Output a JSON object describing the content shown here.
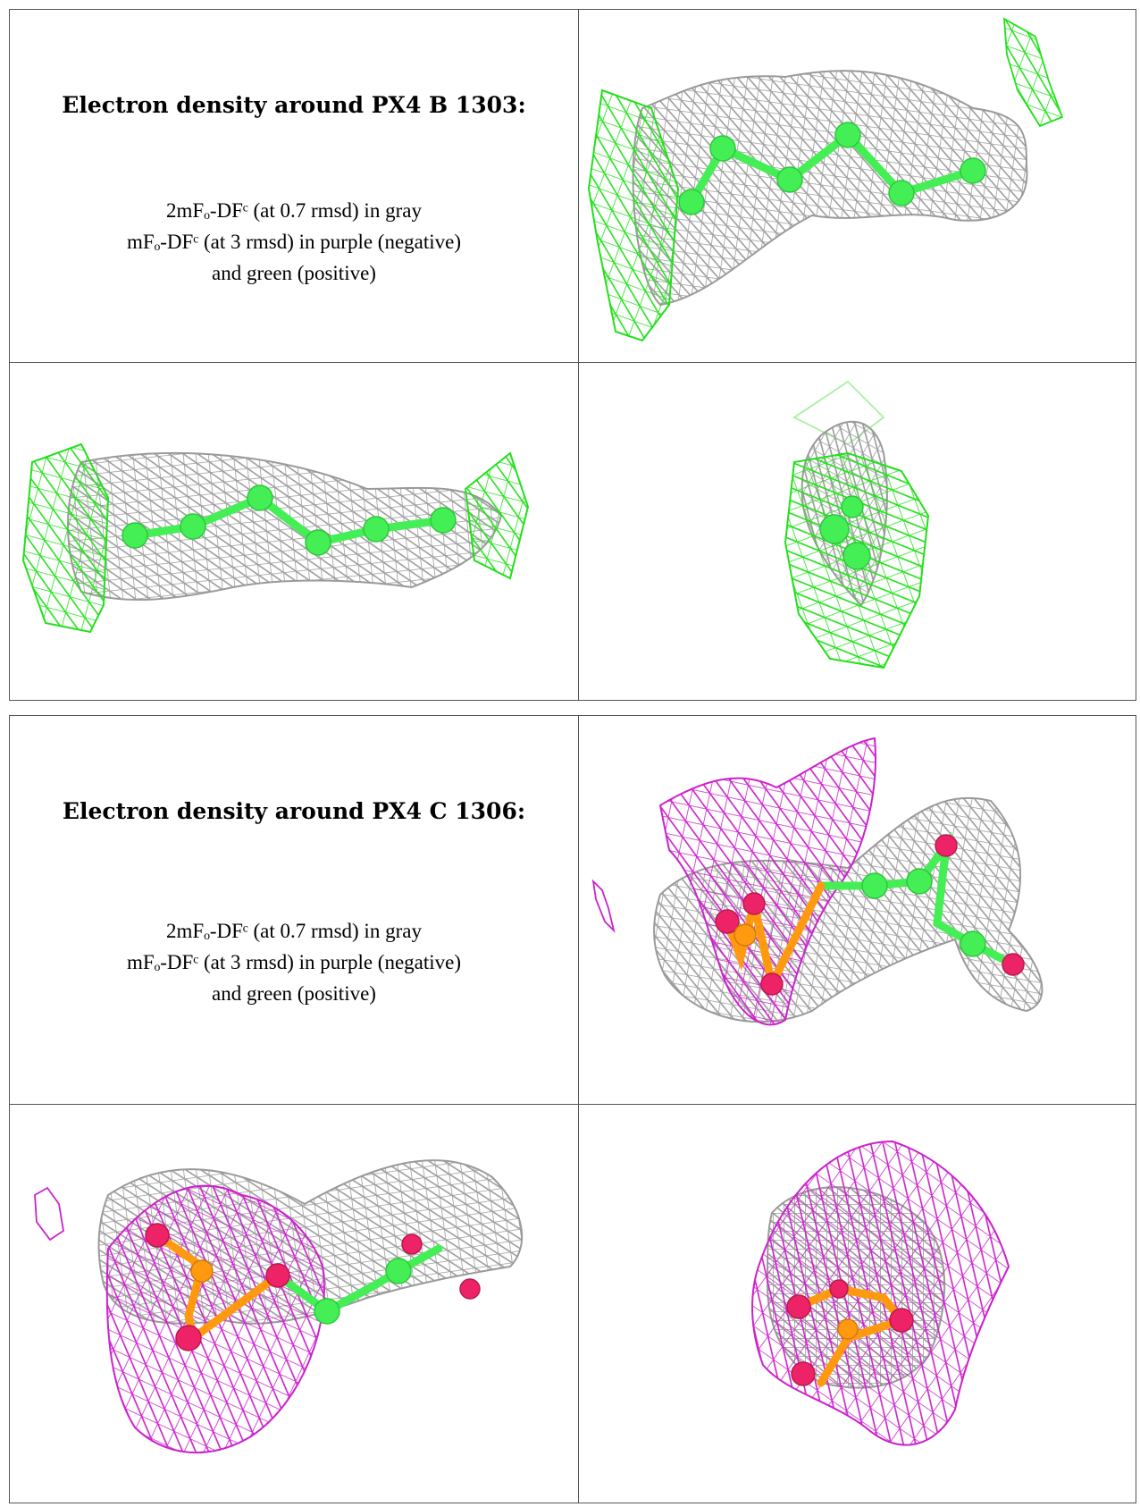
{
  "panels": [
    {
      "title": "Electron density around PX4 B 1303:",
      "legend": {
        "line1": "2mFₒ-DFᶜ (at 0.7 rmsd) in gray",
        "line2": "mFₒ-DFᶜ (at 3 rmsd) in purple (negative)",
        "line3": "and green (positive)"
      },
      "views": [
        "density-view-1",
        "density-view-2",
        "density-view-3"
      ]
    },
    {
      "title": "Electron density around PX4 C 1306:",
      "legend": {
        "line1": "2mFₒ-DFᶜ (at 0.7 rmsd) in gray",
        "line2": "mFₒ-DFᶜ (at 3 rmsd) in purple (negative)",
        "line3": "and green (positive)"
      },
      "views": [
        "density-view-1",
        "density-view-2",
        "density-view-3"
      ]
    }
  ],
  "colors": {
    "gray_mesh": "#9a9a9a",
    "green_mesh": "#22e01a",
    "purple_mesh": "#cc22cc",
    "carbon": "#44ee55",
    "oxygen": "#ee2266",
    "phosphorus": "#ff9910"
  }
}
